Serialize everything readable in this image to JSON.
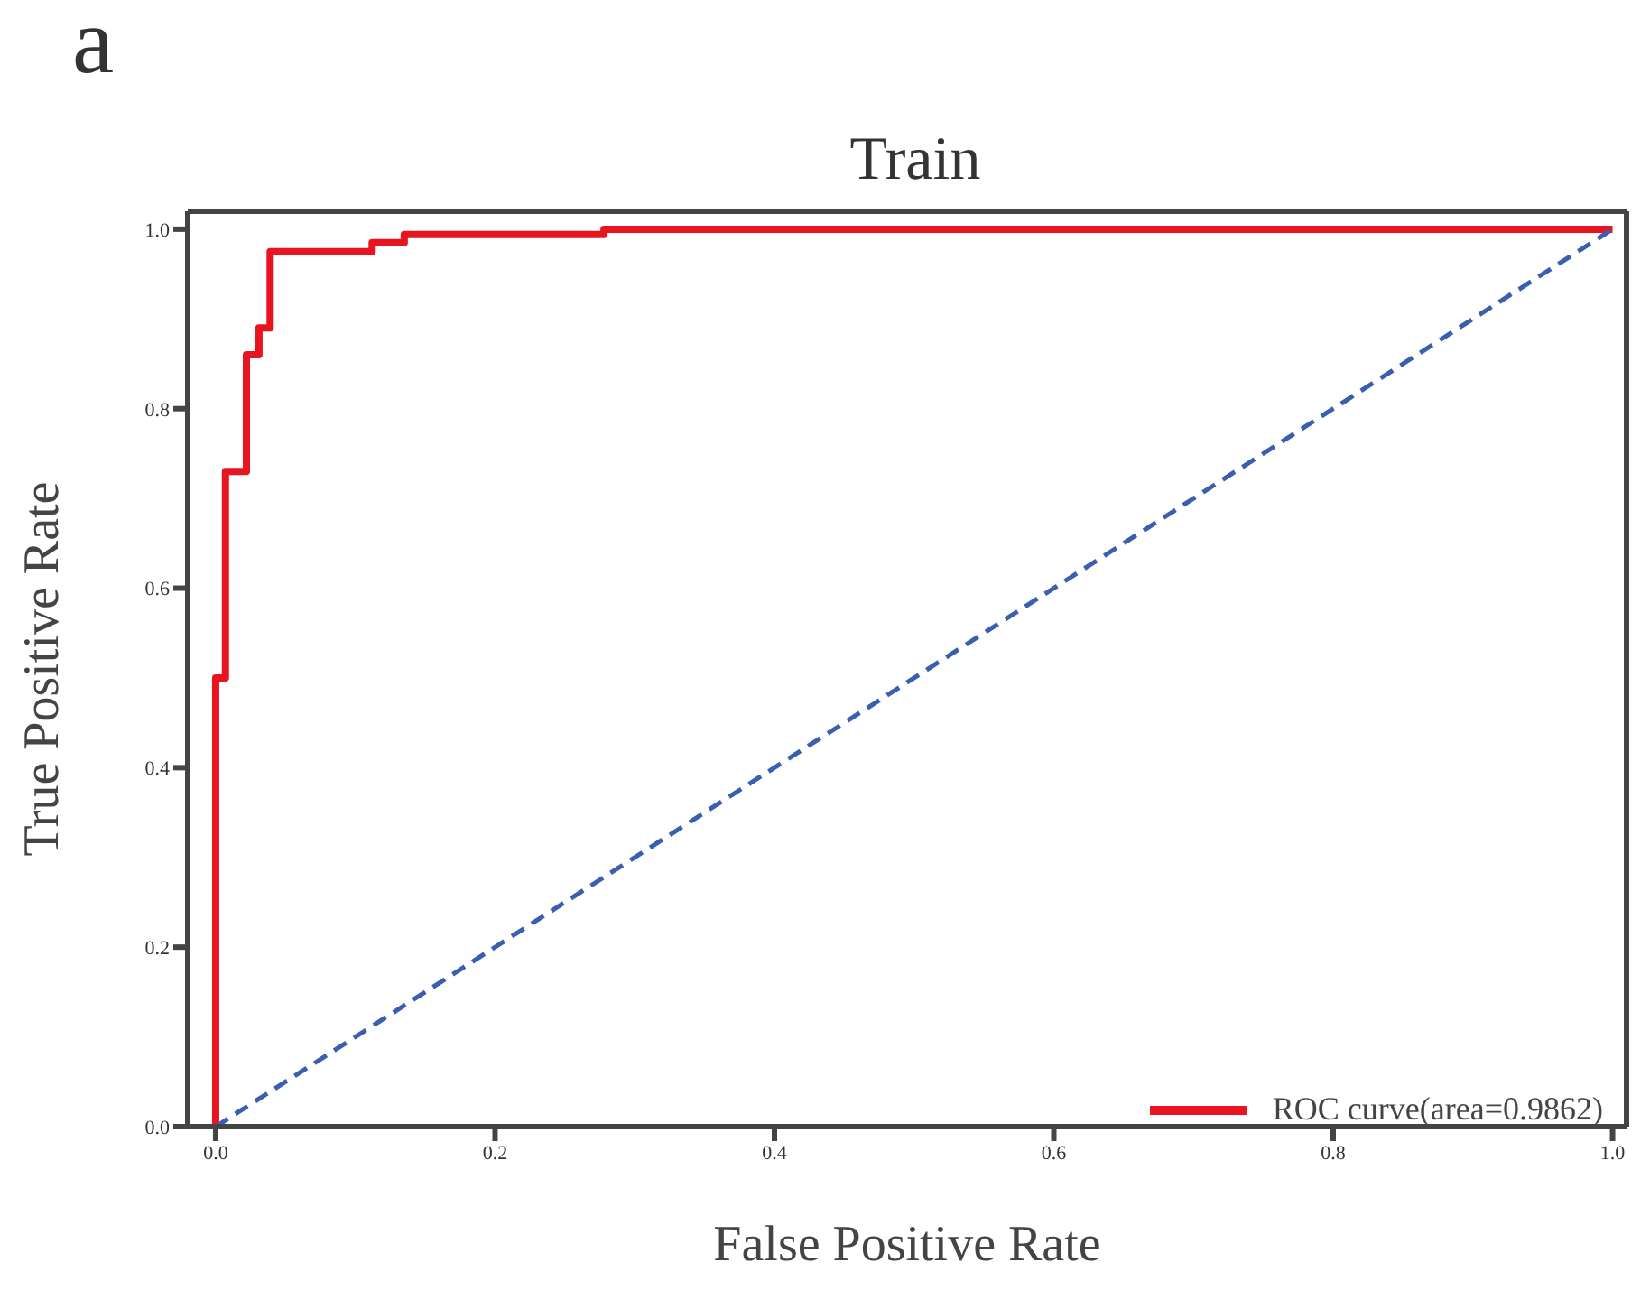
{
  "chart_data": {
    "type": "line",
    "title": "Train",
    "xlabel": "False Positive Rate",
    "ylabel": "True Positive Rate",
    "annotations": [
      "a"
    ],
    "xlim": [
      -0.02,
      1.01
    ],
    "ylim": [
      0,
      1.02
    ],
    "xticks": [
      {
        "value": 0,
        "label": "0.0"
      },
      {
        "value": 0.2,
        "label": "0.2"
      },
      {
        "value": 0.4,
        "label": "0.4"
      },
      {
        "value": 0.6,
        "label": "0.6"
      },
      {
        "value": 0.8,
        "label": "0.8"
      },
      {
        "value": 1,
        "label": "1.0"
      }
    ],
    "yticks": [
      {
        "value": 0,
        "label": "0.0"
      },
      {
        "value": 0.2,
        "label": "0.2"
      },
      {
        "value": 0.4,
        "label": "0.4"
      },
      {
        "value": 0.6,
        "label": "0.6"
      },
      {
        "value": 0.8,
        "label": "0.8"
      },
      {
        "value": 1,
        "label": "1.0"
      }
    ],
    "legend": "bottom right",
    "marker": "none",
    "series": [
      {
        "name": "ROC curve(area=0.9862)",
        "color": "#e8141f",
        "line_style": "solid",
        "x": [
          0,
          0,
          0.002,
          0.002,
          0.007,
          0.007,
          0.022,
          0.022,
          0.031,
          0.031,
          0.039,
          0.039,
          0.112,
          0.112,
          0.135,
          0.135,
          0.278,
          0.278,
          1
        ],
        "values": [
          0,
          0.5,
          0.5,
          0.5,
          0.5,
          0.73,
          0.73,
          0.86,
          0.86,
          0.89,
          0.89,
          0.975,
          0.975,
          0.985,
          0.985,
          0.994,
          0.994,
          1,
          1
        ]
      },
      {
        "color": "#3a5fb0",
        "line_style": "dashed",
        "x": [
          0,
          1
        ],
        "values": [
          0,
          1
        ]
      }
    ]
  }
}
